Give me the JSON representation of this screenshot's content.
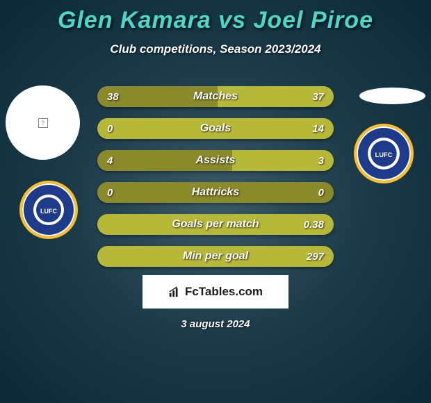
{
  "title": "Glen Kamara vs Joel Piroe",
  "subtitle": "Club competitions, Season 2023/2024",
  "colors": {
    "title": "#48d9c8",
    "bar_left": "#8a8a2a",
    "bar_right": "#b8b838",
    "bar_base": "#6a6a1a",
    "background_dark": "#0a2a3a",
    "badge_blue": "#1e3a8a",
    "badge_gold": "#fbbf24"
  },
  "stats": [
    {
      "label": "Matches",
      "left_value": "38",
      "right_value": "37",
      "left_pct": 51,
      "right_pct": 49
    },
    {
      "label": "Goals",
      "left_value": "0",
      "right_value": "14",
      "left_pct": 0,
      "right_pct": 100
    },
    {
      "label": "Assists",
      "left_value": "4",
      "right_value": "3",
      "left_pct": 57,
      "right_pct": 43
    },
    {
      "label": "Hattricks",
      "left_value": "0",
      "right_value": "0",
      "left_pct": 50,
      "right_pct": 50
    },
    {
      "label": "Goals per match",
      "left_value": "",
      "right_value": "0.38",
      "left_pct": 0,
      "right_pct": 100
    },
    {
      "label": "Min per goal",
      "left_value": "",
      "right_value": "297",
      "left_pct": 0,
      "right_pct": 100
    }
  ],
  "fctables_label": "FcTables.com",
  "date": "3 august 2024",
  "badge_text": "LUFC"
}
